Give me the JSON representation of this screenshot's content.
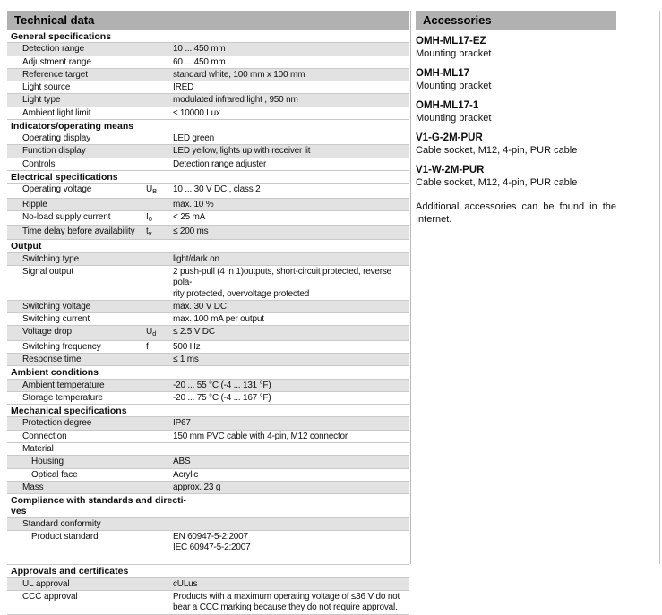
{
  "technical": {
    "header": "Technical data",
    "sections": [
      {
        "title": "General specifications",
        "rows": [
          {
            "label": "Detection range",
            "value": "10 ... 450 mm",
            "shaded": true
          },
          {
            "label": "Adjustment range",
            "value": "60 ... 450 mm",
            "shaded": false
          },
          {
            "label": "Reference target",
            "value": "standard white, 100 mm x 100 mm",
            "shaded": true
          },
          {
            "label": "Light source",
            "value": "IRED",
            "shaded": false
          },
          {
            "label": "Light type",
            "value": "modulated infrared light , 950 nm",
            "shaded": true
          },
          {
            "label": "Ambient light limit",
            "value": "≤ 10000 Lux",
            "shaded": false
          }
        ]
      },
      {
        "title": "Indicators/operating means",
        "rows": [
          {
            "label": "Operating display",
            "value": "LED green",
            "shaded": false
          },
          {
            "label": "Function display",
            "value": "LED yellow, lights up with receiver lit",
            "shaded": true
          },
          {
            "label": "Controls",
            "value": "Detection range adjuster",
            "shaded": false
          }
        ]
      },
      {
        "title": "Electrical specifications",
        "rows": [
          {
            "label": "Operating voltage",
            "sym": "U",
            "sub": "B",
            "value": "10 ... 30 V DC , class 2",
            "shaded": false
          },
          {
            "label": "Ripple",
            "value": "max. 10 %",
            "shaded": true
          },
          {
            "label": "No-load supply current",
            "sym": "I",
            "sub": "0",
            "value": "< 25 mA",
            "shaded": false
          },
          {
            "label": "Time delay before availability",
            "sym": "t",
            "sub": "v",
            "value": "≤ 200 ms",
            "shaded": true
          }
        ]
      },
      {
        "title": "Output",
        "rows": [
          {
            "label": "Switching type",
            "value": "light/dark on",
            "shaded": true
          },
          {
            "label": "Signal output",
            "value": "2 push-pull (4 in 1)outputs, short-circuit protected, reverse pola-\nrity protected, overvoltage protected",
            "shaded": false
          },
          {
            "label": "Switching voltage",
            "value": "max. 30 V DC",
            "shaded": true
          },
          {
            "label": "Switching current",
            "value": "max. 100 mA per output",
            "shaded": false
          },
          {
            "label": "Voltage drop",
            "sym": "U",
            "sub": "d",
            "value": "≤ 2.5 V DC",
            "shaded": true
          },
          {
            "label": "Switching frequency",
            "sym": "f",
            "value": "500 Hz",
            "shaded": false
          },
          {
            "label": "Response time",
            "value": "≤ 1 ms",
            "shaded": true
          }
        ]
      },
      {
        "title": "Ambient conditions",
        "rows": [
          {
            "label": "Ambient temperature",
            "value": "-20 ... 55 °C (-4 ... 131 °F)",
            "shaded": true
          },
          {
            "label": "Storage temperature",
            "value": "-20 ... 75 °C (-4 ... 167 °F)",
            "shaded": false
          }
        ]
      },
      {
        "title": "Mechanical specifications",
        "rows": [
          {
            "label": "Protection degree",
            "value": "IP67",
            "shaded": true
          },
          {
            "label": "Connection",
            "value": "150 mm PVC cable with 4-pin, M12 connector",
            "shaded": false
          },
          {
            "label": "Material",
            "value": "",
            "shaded": false
          },
          {
            "label": "Housing",
            "value": "ABS",
            "shaded": true,
            "indent": 2
          },
          {
            "label": "Optical face",
            "value": "Acrylic",
            "shaded": false,
            "indent": 2
          },
          {
            "label": "Mass",
            "value": "approx. 23 g",
            "shaded": true
          }
        ]
      },
      {
        "title": "Compliance with standards and directi-\nves",
        "rows": [
          {
            "label": "Standard conformity",
            "value": "",
            "shaded": true
          },
          {
            "label": "Product standard",
            "value": "EN 60947-5-2:2007\nIEC 60947-5-2:2007",
            "shaded": false,
            "indent": 2
          }
        ]
      }
    ],
    "approvals": {
      "title": "Approvals and certificates",
      "rows": [
        {
          "label": "UL approval",
          "value": "cULus",
          "shaded": true
        },
        {
          "label": "CCC approval",
          "value": "Products with a maximum operating voltage of ≤36 V do not\nbear a CCC marking because they do not require approval.",
          "shaded": false
        }
      ]
    }
  },
  "accessories": {
    "header": "Accessories",
    "items": [
      {
        "model": "OMH-ML17-EZ",
        "description": "Mounting bracket"
      },
      {
        "model": "OMH-ML17",
        "description": "Mounting bracket"
      },
      {
        "model": "OMH-ML17-1",
        "description": "Mounting bracket"
      },
      {
        "model": "V1-G-2M-PUR",
        "description": "Cable socket, M12, 4-pin, PUR cable"
      },
      {
        "model": "V1-W-2M-PUR",
        "description": "Cable socket, M12, 4-pin, PUR cable"
      }
    ],
    "note": "Additional accessories can be found in the Internet."
  }
}
